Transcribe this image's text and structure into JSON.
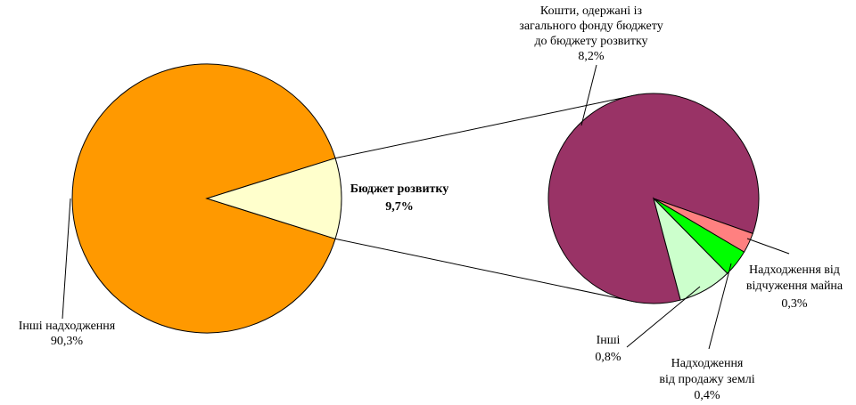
{
  "chart_data": {
    "type": "pie",
    "title": "",
    "main_pie": {
      "slices": [
        {
          "name": "Інші надходження",
          "value": 90.3,
          "label": "90,3%",
          "color": "#FF9900"
        },
        {
          "name": "Бюджет розвитку",
          "value": 9.7,
          "label": "9,7%",
          "color": "#FFFFCC"
        }
      ]
    },
    "secondary_pie": {
      "source": "Бюджет розвитку",
      "slices": [
        {
          "name": "Кошти, одержані із загального фонду бюджету до бюджету розвитку",
          "label_lines": [
            "Кошти, одержані із",
            "загального фонду бюджету",
            "до бюджету розвитку"
          ],
          "value": 8.2,
          "label": "8,2%",
          "color": "#993366"
        },
        {
          "name": "Надходження від відчуження майна",
          "label_lines": [
            "Надходження від",
            "відчуження майна"
          ],
          "value": 0.3,
          "label": "0,3%",
          "color": "#FF8080"
        },
        {
          "name": "Надходження від продажу землі",
          "label_lines": [
            "Надходження",
            "від продажу землі"
          ],
          "value": 0.4,
          "label": "0,4%",
          "color": "#00FF00"
        },
        {
          "name": "Інші",
          "label_lines": [
            "Інші"
          ],
          "value": 0.8,
          "label": "0,8%",
          "color": "#CCFFCC"
        }
      ]
    },
    "legend": "none"
  }
}
